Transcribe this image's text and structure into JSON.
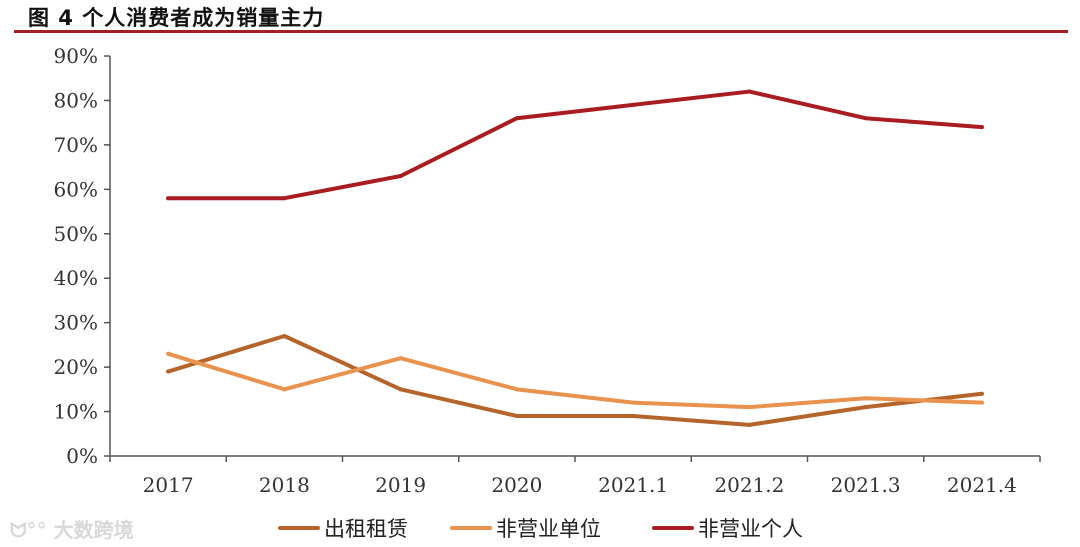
{
  "title": "图 4 个人消费者成为销量主力",
  "watermark": "大数跨境",
  "chart_data": {
    "type": "line",
    "title": "图 4 个人消费者成为销量主力",
    "categories": [
      "2017",
      "2018",
      "2019",
      "2020",
      "2021.1",
      "2021.2",
      "2021.3",
      "2021.4"
    ],
    "y_ticks": [
      "0%",
      "10%",
      "20%",
      "30%",
      "40%",
      "50%",
      "60%",
      "70%",
      "80%",
      "90%"
    ],
    "ylim": [
      0,
      90
    ],
    "xlabel": "",
    "ylabel": "",
    "grid": false,
    "legend_position": "bottom",
    "series": [
      {
        "name": "出租租赁",
        "color": "#b5652b",
        "values": [
          19,
          27,
          15,
          9,
          9,
          7,
          11,
          14
        ]
      },
      {
        "name": "非营业单位",
        "color": "#e8924e",
        "values": [
          23,
          15,
          22,
          15,
          12,
          11,
          13,
          12
        ]
      },
      {
        "name": "非营业个人",
        "color": "#a81c22",
        "values": [
          58,
          58,
          63,
          76,
          79,
          82,
          76,
          74
        ]
      }
    ]
  }
}
